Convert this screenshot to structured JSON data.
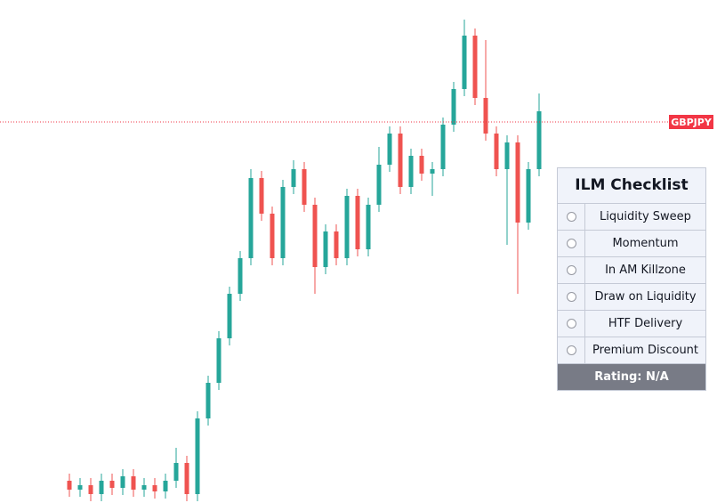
{
  "chart_data": {
    "type": "candlestick",
    "ylim": [
      0,
      565
    ],
    "up_color": "#26a69a",
    "down_color": "#ef5350",
    "open": [
      25,
      15,
      20,
      10,
      25,
      17,
      30,
      15,
      20,
      13,
      25,
      45,
      10,
      95,
      135,
      185,
      235,
      275,
      365,
      325,
      275,
      355,
      375,
      335,
      265,
      305,
      275,
      345,
      285,
      335,
      380,
      415,
      355,
      390,
      370,
      375,
      425,
      465,
      525,
      455,
      415,
      375,
      405,
      315,
      375
    ],
    "high": [
      33,
      28,
      28,
      33,
      33,
      38,
      38,
      28,
      28,
      33,
      62,
      53,
      103,
      143,
      193,
      243,
      283,
      375,
      373,
      333,
      363,
      385,
      383,
      343,
      313,
      313,
      353,
      353,
      343,
      400,
      423,
      423,
      398,
      398,
      383,
      433,
      473,
      543,
      533,
      520,
      423,
      413,
      413,
      383,
      460
    ],
    "low": [
      7,
      7,
      2,
      2,
      9,
      9,
      7,
      7,
      5,
      5,
      17,
      2,
      2,
      87,
      127,
      177,
      227,
      267,
      317,
      267,
      267,
      347,
      327,
      235,
      257,
      267,
      267,
      277,
      277,
      327,
      372,
      347,
      347,
      362,
      345,
      367,
      417,
      457,
      447,
      407,
      367,
      290,
      235,
      307,
      367
    ],
    "close": [
      15,
      20,
      10,
      25,
      17,
      30,
      15,
      20,
      13,
      25,
      45,
      10,
      95,
      135,
      185,
      235,
      275,
      365,
      325,
      275,
      355,
      375,
      335,
      265,
      305,
      275,
      345,
      285,
      335,
      380,
      415,
      355,
      390,
      370,
      375,
      425,
      465,
      525,
      455,
      415,
      375,
      405,
      315,
      375,
      440
    ],
    "price_line": {
      "label": "GBPJPY",
      "value": 428,
      "color": "#f23645"
    }
  },
  "checklist": {
    "title": "ILM Checklist",
    "items": [
      "Liquidity Sweep",
      "Momentum",
      "In AM Killzone",
      "Draw on Liquidity",
      "HTF Delivery",
      "Premium Discount"
    ],
    "rating": "Rating: N/A"
  }
}
